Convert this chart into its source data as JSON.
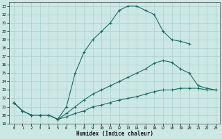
{
  "title": "",
  "xlabel": "Humidex (Indice chaleur)",
  "bg_color": "#cce8e4",
  "grid_color": "#aacfcb",
  "line_color": "#1a6b60",
  "xlim": [
    -0.5,
    23.5
  ],
  "ylim": [
    19,
    33.5
  ],
  "xticks": [
    0,
    1,
    2,
    3,
    4,
    5,
    6,
    7,
    8,
    9,
    10,
    11,
    12,
    13,
    14,
    15,
    16,
    17,
    18,
    19,
    20,
    21,
    22,
    23
  ],
  "yticks": [
    19,
    20,
    21,
    22,
    23,
    24,
    25,
    26,
    27,
    28,
    29,
    30,
    31,
    32,
    33
  ],
  "series": [
    {
      "x": [
        0,
        1,
        2,
        3,
        4,
        5,
        6,
        7,
        8,
        9,
        10,
        11,
        12,
        13,
        14,
        15,
        16,
        17,
        18,
        19,
        20
      ],
      "y": [
        21.5,
        20.5,
        20.0,
        20.0,
        20.0,
        19.5,
        21.0,
        25.0,
        27.5,
        29.0,
        30.0,
        31.0,
        32.5,
        33.0,
        33.0,
        32.5,
        32.0,
        30.0,
        29.0,
        28.8,
        28.5
      ]
    },
    {
      "x": [
        0,
        1,
        2,
        3,
        4,
        5,
        6,
        7,
        8,
        9,
        10,
        11,
        12,
        13,
        14,
        15,
        16,
        17,
        18,
        19,
        20,
        21,
        22,
        23
      ],
      "y": [
        21.5,
        20.5,
        20.0,
        20.0,
        20.0,
        19.5,
        20.2,
        21.0,
        21.8,
        22.5,
        23.0,
        23.5,
        24.0,
        24.5,
        25.0,
        25.5,
        26.2,
        26.5,
        26.3,
        25.5,
        25.0,
        23.5,
        23.2,
        23.0
      ]
    },
    {
      "x": [
        0,
        1,
        2,
        3,
        4,
        5,
        6,
        7,
        8,
        9,
        10,
        11,
        12,
        13,
        14,
        15,
        16,
        17,
        18,
        19,
        20,
        21,
        22,
        23
      ],
      "y": [
        21.5,
        20.5,
        20.0,
        20.0,
        20.0,
        19.5,
        19.8,
        20.2,
        20.5,
        21.0,
        21.2,
        21.5,
        21.8,
        22.0,
        22.2,
        22.5,
        22.8,
        23.0,
        23.0,
        23.2,
        23.2,
        23.2,
        23.0,
        23.0
      ]
    }
  ]
}
